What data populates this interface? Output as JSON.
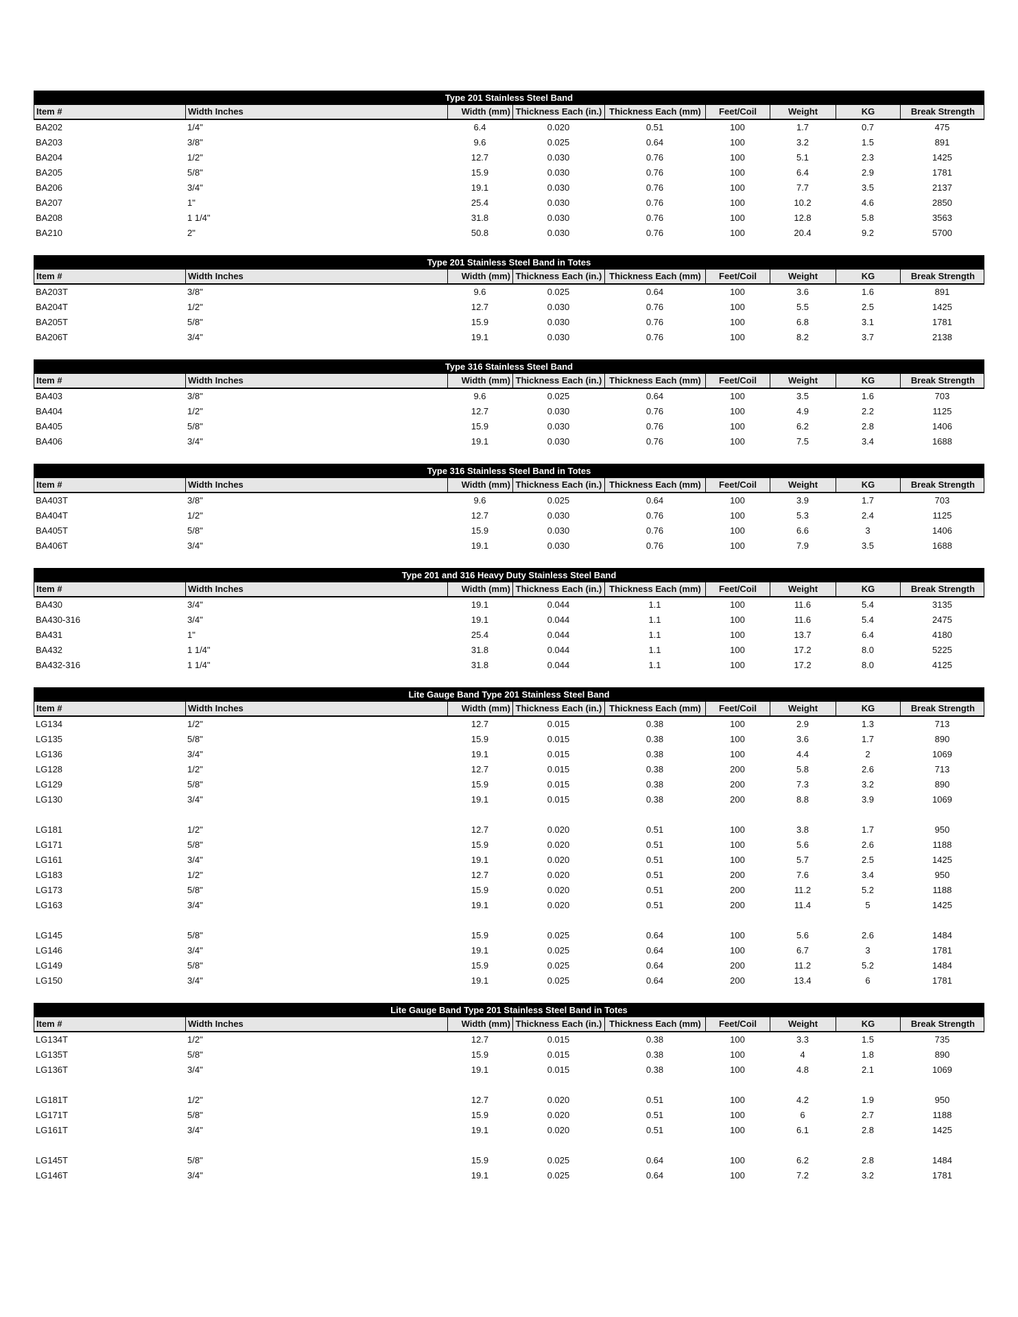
{
  "columns": [
    "Item #",
    "Width Inches",
    "Width (mm)",
    "Thickness Each (in.)",
    "Thickness Each (mm)",
    "Feet/Coil",
    "Weight",
    "KG",
    "Break Strength"
  ],
  "tables": [
    {
      "title": "Type 201 Stainless Steel Band",
      "groups": [
        [
          [
            "BA202",
            "1/4\"",
            "6.4",
            "0.020",
            "0.51",
            "100",
            "1.7",
            "0.7",
            "475"
          ],
          [
            "BA203",
            "3/8\"",
            "9.6",
            "0.025",
            "0.64",
            "100",
            "3.2",
            "1.5",
            "891"
          ],
          [
            "BA204",
            "1/2\"",
            "12.7",
            "0.030",
            "0.76",
            "100",
            "5.1",
            "2.3",
            "1425"
          ],
          [
            "BA205",
            "5/8\"",
            "15.9",
            "0.030",
            "0.76",
            "100",
            "6.4",
            "2.9",
            "1781"
          ],
          [
            "BA206",
            "3/4\"",
            "19.1",
            "0.030",
            "0.76",
            "100",
            "7.7",
            "3.5",
            "2137"
          ],
          [
            "BA207",
            "1\"",
            "25.4",
            "0.030",
            "0.76",
            "100",
            "10.2",
            "4.6",
            "2850"
          ],
          [
            "BA208",
            "1 1/4\"",
            "31.8",
            "0.030",
            "0.76",
            "100",
            "12.8",
            "5.8",
            "3563"
          ],
          [
            "BA210",
            "2\"",
            "50.8",
            "0.030",
            "0.76",
            "100",
            "20.4",
            "9.2",
            "5700"
          ]
        ]
      ]
    },
    {
      "title": "Type 201 Stainless Steel Band in Totes",
      "groups": [
        [
          [
            "BA203T",
            "3/8\"",
            "9.6",
            "0.025",
            "0.64",
            "100",
            "3.6",
            "1.6",
            "891"
          ],
          [
            "BA204T",
            "1/2\"",
            "12.7",
            "0.030",
            "0.76",
            "100",
            "5.5",
            "2.5",
            "1425"
          ],
          [
            "BA205T",
            "5/8\"",
            "15.9",
            "0.030",
            "0.76",
            "100",
            "6.8",
            "3.1",
            "1781"
          ],
          [
            "BA206T",
            "3/4\"",
            "19.1",
            "0.030",
            "0.76",
            "100",
            "8.2",
            "3.7",
            "2138"
          ]
        ]
      ]
    },
    {
      "title": "Type 316 Stainless Steel Band",
      "groups": [
        [
          [
            "BA403",
            "3/8\"",
            "9.6",
            "0.025",
            "0.64",
            "100",
            "3.5",
            "1.6",
            "703"
          ],
          [
            "BA404",
            "1/2\"",
            "12.7",
            "0.030",
            "0.76",
            "100",
            "4.9",
            "2.2",
            "1125"
          ],
          [
            "BA405",
            "5/8\"",
            "15.9",
            "0.030",
            "0.76",
            "100",
            "6.2",
            "2.8",
            "1406"
          ],
          [
            "BA406",
            "3/4\"",
            "19.1",
            "0.030",
            "0.76",
            "100",
            "7.5",
            "3.4",
            "1688"
          ]
        ]
      ]
    },
    {
      "title": "Type 316 Stainless Steel Band in Totes",
      "groups": [
        [
          [
            "BA403T",
            "3/8\"",
            "9.6",
            "0.025",
            "0.64",
            "100",
            "3.9",
            "1.7",
            "703"
          ],
          [
            "BA404T",
            "1/2\"",
            "12.7",
            "0.030",
            "0.76",
            "100",
            "5.3",
            "2.4",
            "1125"
          ],
          [
            "BA405T",
            "5/8\"",
            "15.9",
            "0.030",
            "0.76",
            "100",
            "6.6",
            "3",
            "1406"
          ],
          [
            "BA406T",
            "3/4\"",
            "19.1",
            "0.030",
            "0.76",
            "100",
            "7.9",
            "3.5",
            "1688"
          ]
        ]
      ]
    },
    {
      "title": "Type 201 and 316 Heavy Duty Stainless Steel Band",
      "groups": [
        [
          [
            "BA430",
            "3/4\"",
            "19.1",
            "0.044",
            "1.1",
            "100",
            "11.6",
            "5.4",
            "3135"
          ],
          [
            "BA430-316",
            "3/4\"",
            "19.1",
            "0.044",
            "1.1",
            "100",
            "11.6",
            "5.4",
            "2475"
          ],
          [
            "BA431",
            "1\"",
            "25.4",
            "0.044",
            "1.1",
            "100",
            "13.7",
            "6.4",
            "4180"
          ],
          [
            "BA432",
            "1 1/4\"",
            "31.8",
            "0.044",
            "1.1",
            "100",
            "17.2",
            "8.0",
            "5225"
          ],
          [
            "BA432-316",
            "1 1/4\"",
            "31.8",
            "0.044",
            "1.1",
            "100",
            "17.2",
            "8.0",
            "4125"
          ]
        ]
      ]
    },
    {
      "title": "Lite Gauge Band Type 201 Stainless Steel Band",
      "groups": [
        [
          [
            "LG134",
            "1/2\"",
            "12.7",
            "0.015",
            "0.38",
            "100",
            "2.9",
            "1.3",
            "713"
          ],
          [
            "LG135",
            "5/8\"",
            "15.9",
            "0.015",
            "0.38",
            "100",
            "3.6",
            "1.7",
            "890"
          ],
          [
            "LG136",
            "3/4\"",
            "19.1",
            "0.015",
            "0.38",
            "100",
            "4.4",
            "2",
            "1069"
          ],
          [
            "LG128",
            "1/2\"",
            "12.7",
            "0.015",
            "0.38",
            "200",
            "5.8",
            "2.6",
            "713"
          ],
          [
            "LG129",
            "5/8\"",
            "15.9",
            "0.015",
            "0.38",
            "200",
            "7.3",
            "3.2",
            "890"
          ],
          [
            "LG130",
            "3/4\"",
            "19.1",
            "0.015",
            "0.38",
            "200",
            "8.8",
            "3.9",
            "1069"
          ]
        ],
        [
          [
            "LG181",
            "1/2\"",
            "12.7",
            "0.020",
            "0.51",
            "100",
            "3.8",
            "1.7",
            "950"
          ],
          [
            "LG171",
            "5/8\"",
            "15.9",
            "0.020",
            "0.51",
            "100",
            "5.6",
            "2.6",
            "1188"
          ],
          [
            "LG161",
            "3/4\"",
            "19.1",
            "0.020",
            "0.51",
            "100",
            "5.7",
            "2.5",
            "1425"
          ],
          [
            "LG183",
            "1/2\"",
            "12.7",
            "0.020",
            "0.51",
            "200",
            "7.6",
            "3.4",
            "950"
          ],
          [
            "LG173",
            "5/8\"",
            "15.9",
            "0.020",
            "0.51",
            "200",
            "11.2",
            "5.2",
            "1188"
          ],
          [
            "LG163",
            "3/4\"",
            "19.1",
            "0.020",
            "0.51",
            "200",
            "11.4",
            "5",
            "1425"
          ]
        ],
        [
          [
            "LG145",
            "5/8\"",
            "15.9",
            "0.025",
            "0.64",
            "100",
            "5.6",
            "2.6",
            "1484"
          ],
          [
            "LG146",
            "3/4\"",
            "19.1",
            "0.025",
            "0.64",
            "100",
            "6.7",
            "3",
            "1781"
          ],
          [
            "LG149",
            "5/8\"",
            "15.9",
            "0.025",
            "0.64",
            "200",
            "11.2",
            "5.2",
            "1484"
          ],
          [
            "LG150",
            "3/4\"",
            "19.1",
            "0.025",
            "0.64",
            "200",
            "13.4",
            "6",
            "1781"
          ]
        ]
      ]
    },
    {
      "title": "Lite Gauge Band Type 201 Stainless Steel Band in Totes",
      "groups": [
        [
          [
            "LG134T",
            "1/2\"",
            "12.7",
            "0.015",
            "0.38",
            "100",
            "3.3",
            "1.5",
            "735"
          ],
          [
            "LG135T",
            "5/8\"",
            "15.9",
            "0.015",
            "0.38",
            "100",
            "4",
            "1.8",
            "890"
          ],
          [
            "LG136T",
            "3/4\"",
            "19.1",
            "0.015",
            "0.38",
            "100",
            "4.8",
            "2.1",
            "1069"
          ]
        ],
        [
          [
            "LG181T",
            "1/2\"",
            "12.7",
            "0.020",
            "0.51",
            "100",
            "4.2",
            "1.9",
            "950"
          ],
          [
            "LG171T",
            "5/8\"",
            "15.9",
            "0.020",
            "0.51",
            "100",
            "6",
            "2.7",
            "1188"
          ],
          [
            "LG161T",
            "3/4\"",
            "19.1",
            "0.020",
            "0.51",
            "100",
            "6.1",
            "2.8",
            "1425"
          ]
        ],
        [
          [
            "LG145T",
            "5/8\"",
            "15.9",
            "0.025",
            "0.64",
            "100",
            "6.2",
            "2.8",
            "1484"
          ],
          [
            "LG146T",
            "3/4\"",
            "19.1",
            "0.025",
            "0.64",
            "100",
            "7.2",
            "3.2",
            "1781"
          ]
        ]
      ]
    }
  ]
}
